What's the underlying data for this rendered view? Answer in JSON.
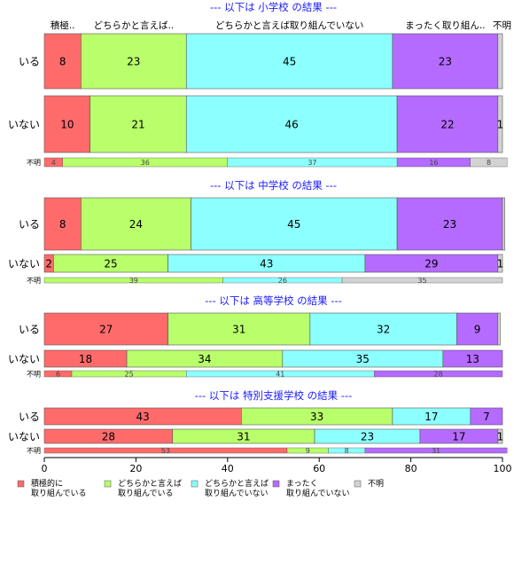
{
  "chart_data": {
    "type": "bar",
    "stacked": true,
    "orientation": "horizontal",
    "xlim": [
      0,
      100
    ],
    "x_ticks": [
      "0",
      "20",
      "40",
      "60",
      "80",
      "100"
    ],
    "categories": [
      "積極的に取り組んでいる",
      "どちらかと言えば取り組んでいる",
      "どちらかと言えば取り組んでいない",
      "まったく取り組んでいない",
      "不明"
    ],
    "top_labels": [
      "積極..",
      "どちらかと言えば..",
      "どちらかと言えば取り組んでいない",
      "まったく取り組ん..",
      "不明"
    ],
    "colors": [
      "#ff6b6b",
      "#b8ff6b",
      "#8cffff",
      "#b56bff",
      "#d3d3d3"
    ],
    "legend": {
      "position": "bottom",
      "entries": [
        [
          "積極的に",
          "取り組んでいる"
        ],
        [
          "どちらかと言えば",
          "取り組んでいる"
        ],
        [
          "どちらかと言えば",
          "取り組んでいない"
        ],
        [
          "まったく",
          "取り組んでいない"
        ],
        [
          "不明"
        ]
      ]
    },
    "panels": [
      {
        "title": "--- 以下は 小学校 の結果 ---",
        "rows": [
          {
            "label": "いる",
            "values": [
              8,
              23,
              45,
              23,
              1
            ],
            "data_labels": [
              "8",
              "23",
              "45",
              "23",
              ""
            ],
            "size": "large"
          },
          {
            "label": "いない",
            "values": [
              10,
              21,
              46,
              22,
              1
            ],
            "data_labels": [
              "10",
              "21",
              "46",
              "22",
              "1"
            ],
            "size": "large"
          },
          {
            "label": "不明",
            "values": [
              4,
              36,
              37,
              16,
              8
            ],
            "data_labels": [
              "4",
              "36",
              "37",
              "16",
              "8"
            ],
            "size": "small"
          }
        ]
      },
      {
        "title": "--- 以下は 中学校 の結果 ---",
        "rows": [
          {
            "label": "いる",
            "values": [
              8,
              24,
              45,
              23,
              0.5
            ],
            "data_labels": [
              "8",
              "24",
              "45",
              "23",
              ""
            ],
            "size": "large"
          },
          {
            "label": "いない",
            "values": [
              2,
              25,
              43,
              29,
              1
            ],
            "data_labels": [
              "2",
              "25",
              "43",
              "29",
              "1"
            ],
            "size": "medium"
          },
          {
            "label": "不明",
            "values": [
              0,
              39,
              26,
              0,
              35
            ],
            "data_labels": [
              "",
              "39",
              "26",
              "",
              "35"
            ],
            "size": "small"
          }
        ]
      },
      {
        "title": "--- 以下は 高等学校 の結果 ---",
        "rows": [
          {
            "label": "いる",
            "values": [
              27,
              31,
              32,
              9,
              0.5
            ],
            "data_labels": [
              "27",
              "31",
              "32",
              "9",
              ""
            ],
            "size": "large"
          },
          {
            "label": "いない",
            "values": [
              18,
              34,
              35,
              13,
              0
            ],
            "data_labels": [
              "18",
              "34",
              "35",
              "13",
              ""
            ],
            "size": "medium"
          },
          {
            "label": "不明",
            "values": [
              6,
              25,
              41,
              28,
              0
            ],
            "data_labels": [
              "6",
              "25",
              "41",
              "28",
              ""
            ],
            "size": "small"
          }
        ]
      },
      {
        "title": "--- 以下は 特別支援学校 の結果 ---",
        "rows": [
          {
            "label": "いる",
            "values": [
              43,
              33,
              17,
              7,
              0
            ],
            "data_labels": [
              "43",
              "33",
              "17",
              "7",
              ""
            ],
            "size": "medium"
          },
          {
            "label": "いない",
            "values": [
              28,
              31,
              23,
              17,
              1
            ],
            "data_labels": [
              "28",
              "31",
              "23",
              "17",
              "1"
            ],
            "size": "medium"
          },
          {
            "label": "不明",
            "values": [
              53,
              9,
              8,
              31,
              0
            ],
            "data_labels": [
              "53",
              "9",
              "8",
              "31",
              ""
            ],
            "size": "small"
          }
        ]
      }
    ]
  }
}
